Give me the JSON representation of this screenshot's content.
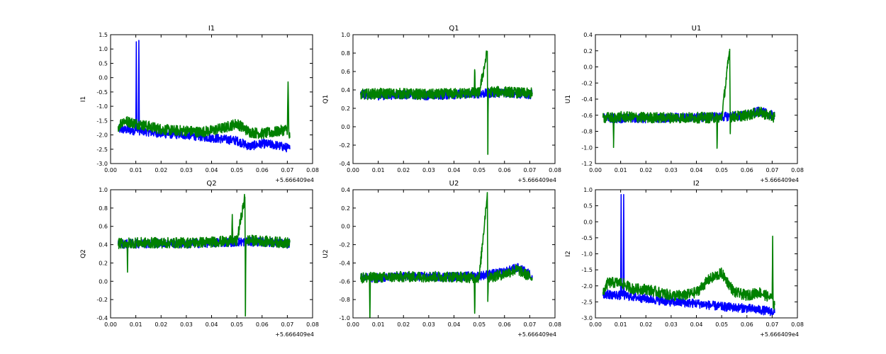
{
  "x_offset_label": "+5.666409e4",
  "chart_data": [
    {
      "type": "line",
      "title": "I1",
      "ylabel": "I1",
      "xlim": [
        0.0,
        0.08
      ],
      "ylim": [
        -3.0,
        1.5
      ],
      "xticks": [
        "0.00",
        "0.01",
        "0.02",
        "0.03",
        "0.04",
        "0.05",
        "0.06",
        "0.07",
        "0.08"
      ],
      "yticks": [
        "1.5",
        "1.0",
        "0.5",
        "0.0",
        "-0.5",
        "-1.0",
        "-1.5",
        "-2.0",
        "-2.5",
        "-3.0"
      ],
      "series": [
        {
          "color": "#0000ff",
          "x": [
            0.003,
            0.01,
            0.0102,
            0.0104,
            0.011,
            0.0112,
            0.0114,
            0.02,
            0.03,
            0.04,
            0.05,
            0.055,
            0.06,
            0.065,
            0.07,
            0.071
          ],
          "y": [
            -1.8,
            -1.85,
            1.25,
            -1.85,
            -1.85,
            1.3,
            -1.85,
            -1.95,
            -2.0,
            -2.1,
            -2.2,
            -2.4,
            -2.3,
            -2.35,
            -2.45,
            -2.5
          ]
        },
        {
          "color": "#008000",
          "x": [
            0.003,
            0.005,
            0.01,
            0.015,
            0.02,
            0.025,
            0.03,
            0.035,
            0.04,
            0.045,
            0.05,
            0.055,
            0.06,
            0.065,
            0.07,
            0.0703,
            0.0706,
            0.071
          ],
          "y": [
            -1.7,
            -1.5,
            -1.6,
            -1.7,
            -1.8,
            -1.85,
            -1.85,
            -1.9,
            -1.85,
            -1.75,
            -1.6,
            -1.9,
            -1.95,
            -1.9,
            -1.8,
            -0.15,
            -2.0,
            -2.1
          ]
        }
      ]
    },
    {
      "type": "line",
      "title": "Q1",
      "ylabel": "Q1",
      "xlim": [
        0.0,
        0.08
      ],
      "ylim": [
        -0.4,
        1.0
      ],
      "xticks": [
        "0.00",
        "0.01",
        "0.02",
        "0.03",
        "0.04",
        "0.05",
        "0.06",
        "0.07",
        "0.08"
      ],
      "yticks": [
        "1.0",
        "0.8",
        "0.6",
        "0.4",
        "0.2",
        "0.0",
        "-0.2",
        "-0.4"
      ],
      "series": [
        {
          "color": "#0000ff",
          "x": [
            0.003,
            0.01,
            0.02,
            0.03,
            0.04,
            0.05,
            0.06,
            0.065,
            0.07,
            0.071
          ],
          "y": [
            0.35,
            0.34,
            0.35,
            0.34,
            0.35,
            0.36,
            0.37,
            0.36,
            0.35,
            0.36
          ]
        },
        {
          "color": "#008000",
          "x": [
            0.003,
            0.01,
            0.02,
            0.03,
            0.04,
            0.048,
            0.0482,
            0.0484,
            0.05,
            0.0532,
            0.0534,
            0.0536,
            0.054,
            0.06,
            0.065,
            0.07,
            0.071
          ],
          "y": [
            0.35,
            0.36,
            0.36,
            0.35,
            0.36,
            0.37,
            0.62,
            0.37,
            0.37,
            0.82,
            -0.3,
            0.37,
            0.38,
            0.38,
            0.37,
            0.36,
            0.37
          ]
        }
      ]
    },
    {
      "type": "line",
      "title": "U1",
      "ylabel": "U1",
      "xlim": [
        0.0,
        0.08
      ],
      "ylim": [
        -1.2,
        0.4
      ],
      "xticks": [
        "0.00",
        "0.01",
        "0.02",
        "0.03",
        "0.04",
        "0.05",
        "0.06",
        "0.07",
        "0.08"
      ],
      "yticks": [
        "0.4",
        "0.2",
        "0.0",
        "-0.2",
        "-0.4",
        "-0.6",
        "-0.8",
        "-1.0",
        "-1.2"
      ],
      "series": [
        {
          "color": "#0000ff",
          "x": [
            0.003,
            0.01,
            0.02,
            0.03,
            0.04,
            0.05,
            0.06,
            0.065,
            0.07,
            0.071
          ],
          "y": [
            -0.63,
            -0.64,
            -0.64,
            -0.63,
            -0.63,
            -0.62,
            -0.6,
            -0.55,
            -0.6,
            -0.62
          ]
        },
        {
          "color": "#008000",
          "x": [
            0.003,
            0.007,
            0.0072,
            0.0074,
            0.01,
            0.02,
            0.03,
            0.04,
            0.048,
            0.0482,
            0.0484,
            0.05,
            0.0532,
            0.0534,
            0.0536,
            0.06,
            0.065,
            0.07,
            0.071
          ],
          "y": [
            -0.63,
            -0.63,
            -1.0,
            -0.63,
            -0.62,
            -0.63,
            -0.63,
            -0.63,
            -0.63,
            -1.0,
            -0.63,
            -0.63,
            0.22,
            -0.8,
            -0.62,
            -0.6,
            -0.56,
            -0.62,
            -0.62
          ]
        }
      ]
    },
    {
      "type": "line",
      "title": "Q2",
      "ylabel": "Q2",
      "xlim": [
        0.0,
        0.08
      ],
      "ylim": [
        -0.4,
        1.0
      ],
      "xticks": [
        "0.00",
        "0.01",
        "0.02",
        "0.03",
        "0.04",
        "0.05",
        "0.06",
        "0.07",
        "0.08"
      ],
      "yticks": [
        "1.0",
        "0.8",
        "0.6",
        "0.4",
        "0.2",
        "0.0",
        "-0.2",
        "-0.4"
      ],
      "series": [
        {
          "color": "#0000ff",
          "x": [
            0.003,
            0.01,
            0.02,
            0.03,
            0.04,
            0.05,
            0.06,
            0.065,
            0.07,
            0.071
          ],
          "y": [
            0.41,
            0.41,
            0.42,
            0.41,
            0.42,
            0.43,
            0.43,
            0.42,
            0.41,
            0.42
          ]
        },
        {
          "color": "#008000",
          "x": [
            0.003,
            0.0065,
            0.0067,
            0.0069,
            0.01,
            0.02,
            0.03,
            0.04,
            0.048,
            0.0482,
            0.0484,
            0.05,
            0.0532,
            0.0534,
            0.0536,
            0.054,
            0.06,
            0.065,
            0.07,
            0.071
          ],
          "y": [
            0.41,
            0.42,
            0.1,
            0.42,
            0.42,
            0.42,
            0.42,
            0.43,
            0.44,
            0.73,
            0.44,
            0.44,
            0.92,
            -0.38,
            0.44,
            0.45,
            0.44,
            0.43,
            0.42,
            0.43
          ]
        }
      ]
    },
    {
      "type": "line",
      "title": "U2",
      "ylabel": "U2",
      "xlim": [
        0.0,
        0.08
      ],
      "ylim": [
        -1.0,
        0.4
      ],
      "xticks": [
        "0.00",
        "0.01",
        "0.02",
        "0.03",
        "0.04",
        "0.05",
        "0.06",
        "0.07",
        "0.08"
      ],
      "yticks": [
        "0.4",
        "0.2",
        "0.0",
        "-0.2",
        "-0.4",
        "-0.6",
        "-0.8",
        "-1.0"
      ],
      "series": [
        {
          "color": "#0000ff",
          "x": [
            0.003,
            0.01,
            0.02,
            0.03,
            0.04,
            0.05,
            0.06,
            0.065,
            0.07,
            0.071
          ],
          "y": [
            -0.56,
            -0.56,
            -0.55,
            -0.55,
            -0.55,
            -0.54,
            -0.5,
            -0.45,
            -0.52,
            -0.56
          ]
        },
        {
          "color": "#008000",
          "x": [
            0.003,
            0.0065,
            0.0067,
            0.0069,
            0.01,
            0.02,
            0.03,
            0.04,
            0.048,
            0.0482,
            0.0484,
            0.05,
            0.0532,
            0.0534,
            0.0536,
            0.06,
            0.065,
            0.07,
            0.071
          ],
          "y": [
            -0.56,
            -0.56,
            -1.0,
            -0.56,
            -0.56,
            -0.55,
            -0.55,
            -0.55,
            -0.56,
            -0.95,
            -0.56,
            -0.56,
            0.37,
            -0.82,
            -0.56,
            -0.52,
            -0.47,
            -0.55,
            -0.56
          ]
        }
      ]
    },
    {
      "type": "line",
      "title": "I2",
      "ylabel": "I2",
      "xlim": [
        0.0,
        0.08
      ],
      "ylim": [
        -3.0,
        1.0
      ],
      "xticks": [
        "0.00",
        "0.01",
        "0.02",
        "0.03",
        "0.04",
        "0.05",
        "0.06",
        "0.07",
        "0.08"
      ],
      "yticks": [
        "1.0",
        "0.5",
        "0.0",
        "-0.5",
        "-1.0",
        "-1.5",
        "-2.0",
        "-2.5",
        "-3.0"
      ],
      "series": [
        {
          "color": "#0000ff",
          "x": [
            0.003,
            0.01,
            0.0102,
            0.0104,
            0.011,
            0.0112,
            0.0114,
            0.02,
            0.03,
            0.04,
            0.05,
            0.06,
            0.065,
            0.07,
            0.071
          ],
          "y": [
            -2.25,
            -2.3,
            0.85,
            -2.3,
            -2.3,
            0.85,
            -2.3,
            -2.4,
            -2.5,
            -2.55,
            -2.65,
            -2.7,
            -2.75,
            -2.8,
            -2.85
          ]
        },
        {
          "color": "#008000",
          "x": [
            0.003,
            0.005,
            0.01,
            0.015,
            0.02,
            0.025,
            0.03,
            0.035,
            0.04,
            0.045,
            0.05,
            0.055,
            0.06,
            0.065,
            0.07,
            0.0702,
            0.0704,
            0.071
          ],
          "y": [
            -2.2,
            -1.9,
            -1.9,
            -2.1,
            -2.1,
            -2.2,
            -2.3,
            -2.3,
            -2.2,
            -1.8,
            -1.6,
            -2.2,
            -2.3,
            -2.2,
            -2.4,
            -0.45,
            -2.6,
            -2.6
          ]
        }
      ]
    }
  ]
}
